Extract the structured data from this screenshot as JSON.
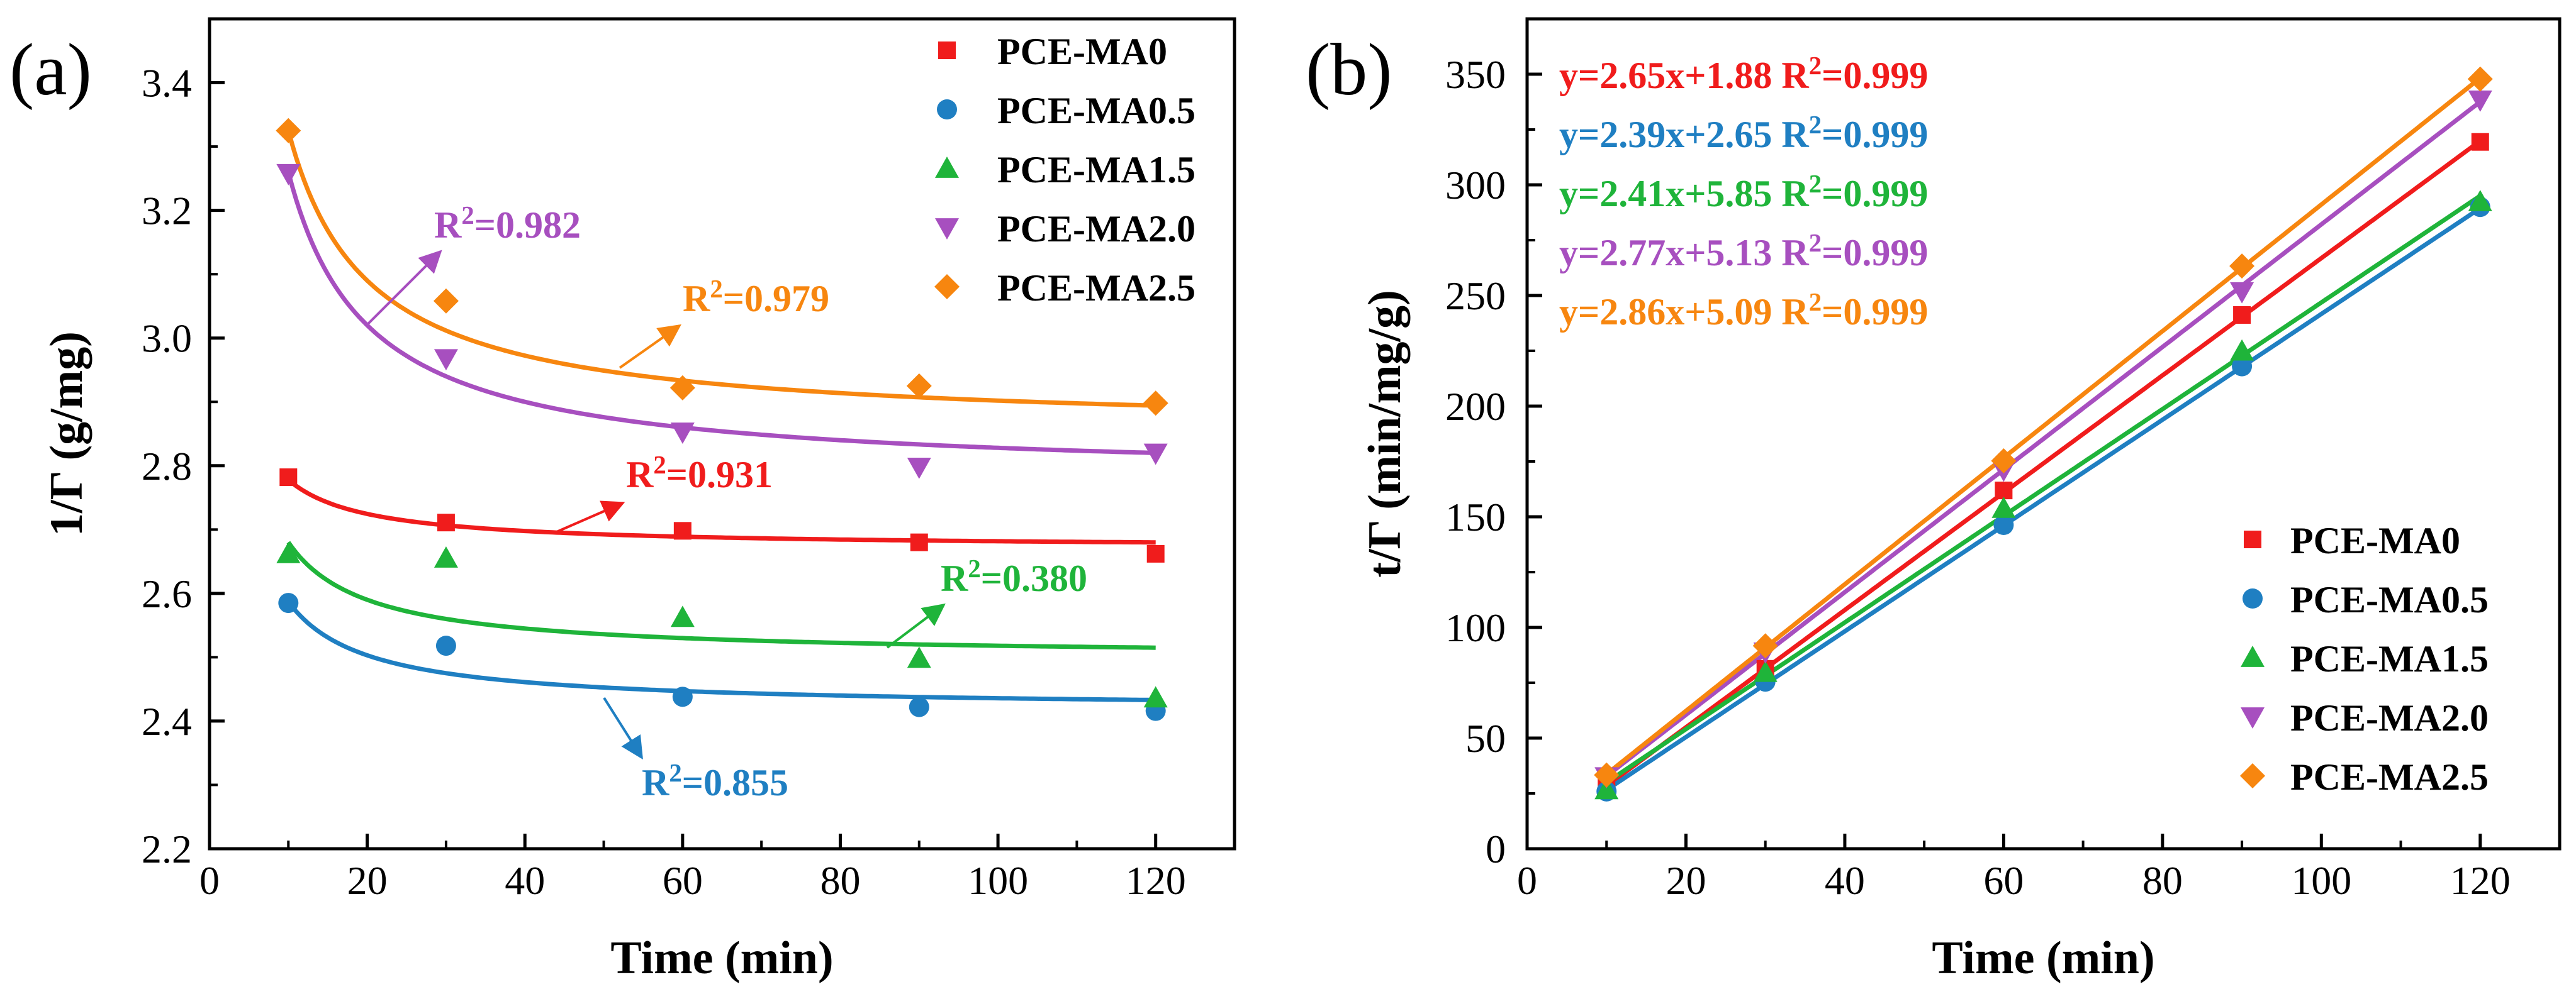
{
  "colors": {
    "PCE-MA0": "#f01c1c",
    "PCE-MA0.5": "#1f7fc2",
    "PCE-MA1.5": "#1fb43a",
    "PCE-MA2.0": "#a74fbf",
    "PCE-MA2.5": "#f7860f"
  },
  "chart_data": [
    {
      "panel_label": "(a)",
      "type": "scatter",
      "title": "",
      "xlabel": "Time (min)",
      "ylabel": "1/Γ (g/mg)",
      "xlim": [
        0,
        130
      ],
      "ylim": [
        2.2,
        3.5
      ],
      "xticks": [
        0,
        20,
        40,
        60,
        80,
        100,
        120
      ],
      "yticks": [
        2.2,
        2.4,
        2.6,
        2.8,
        3.0,
        3.2,
        3.4
      ],
      "ytick_decimals": 1,
      "legend_position": "top-right",
      "series": [
        {
          "name": "PCE-MA0",
          "marker": "square",
          "x": [
            10,
            30,
            60,
            90,
            120
          ],
          "y": [
            2.782,
            2.711,
            2.698,
            2.68,
            2.662
          ],
          "fit": {
            "a": 2.671,
            "b": 1.07
          }
        },
        {
          "name": "PCE-MA0.5",
          "marker": "circle",
          "x": [
            10,
            30,
            60,
            90,
            120
          ],
          "y": [
            2.585,
            2.518,
            2.438,
            2.422,
            2.416
          ],
          "fit": {
            "a": 2.419,
            "b": 1.68
          }
        },
        {
          "name": "PCE-MA1.5",
          "marker": "triangle-up",
          "x": [
            10,
            30,
            60,
            90,
            120
          ],
          "y": [
            2.662,
            2.655,
            2.562,
            2.498,
            2.436
          ],
          "fit": {
            "a": 2.5,
            "b": 1.8
          }
        },
        {
          "name": "PCE-MA2.0",
          "marker": "triangle-down",
          "x": [
            10,
            30,
            60,
            90,
            120
          ],
          "y": [
            3.258,
            2.968,
            2.853,
            2.798,
            2.82
          ],
          "fit": {
            "a": 2.78,
            "b": 4.8
          }
        },
        {
          "name": "PCE-MA2.5",
          "marker": "diamond",
          "x": [
            10,
            30,
            60,
            90,
            120
          ],
          "y": [
            3.325,
            3.058,
            2.922,
            2.925,
            2.898
          ],
          "fit": {
            "a": 2.855,
            "b": 4.7
          }
        }
      ],
      "annotations": [
        {
          "series": "PCE-MA2.0",
          "text": "R²=0.982"
        },
        {
          "series": "PCE-MA2.5",
          "text": "R²=0.979"
        },
        {
          "series": "PCE-MA0",
          "text": "R²=0.931"
        },
        {
          "series": "PCE-MA1.5",
          "text": "R²=0.380"
        },
        {
          "series": "PCE-MA0.5",
          "text": "R²=0.855"
        }
      ]
    },
    {
      "panel_label": "(b)",
      "type": "scatter",
      "title": "",
      "xlabel": "Time (min)",
      "ylabel": "t/Γ (min/mg/g)",
      "xlim": [
        0,
        130
      ],
      "ylim": [
        0,
        375
      ],
      "xticks": [
        0,
        20,
        40,
        60,
        80,
        100,
        120
      ],
      "yticks": [
        0,
        50,
        100,
        150,
        200,
        250,
        300,
        350
      ],
      "ytick_decimals": 0,
      "legend_position": "bottom-right",
      "series": [
        {
          "name": "PCE-MA0",
          "marker": "square",
          "x": [
            10,
            30,
            60,
            90,
            120
          ],
          "y": [
            27.8,
            81.3,
            161.9,
            241.2,
            319.4
          ],
          "fit": {
            "slope": 2.65,
            "intercept": 1.88
          }
        },
        {
          "name": "PCE-MA0.5",
          "marker": "circle",
          "x": [
            10,
            30,
            60,
            90,
            120
          ],
          "y": [
            25.9,
            75.5,
            146.3,
            218.0,
            290.0
          ],
          "fit": {
            "slope": 2.39,
            "intercept": 2.65
          }
        },
        {
          "name": "PCE-MA1.5",
          "marker": "triangle-up",
          "x": [
            10,
            30,
            60,
            90,
            120
          ],
          "y": [
            26.6,
            79.6,
            153.7,
            224.8,
            292.3
          ],
          "fit": {
            "slope": 2.41,
            "intercept": 5.85
          }
        },
        {
          "name": "PCE-MA2.0",
          "marker": "triangle-down",
          "x": [
            10,
            30,
            60,
            90,
            120
          ],
          "y": [
            32.6,
            89.0,
            171.2,
            251.8,
            338.4
          ],
          "fit": {
            "slope": 2.77,
            "intercept": 5.13
          }
        },
        {
          "name": "PCE-MA2.5",
          "marker": "diamond",
          "x": [
            10,
            30,
            60,
            90,
            120
          ],
          "y": [
            33.3,
            91.7,
            175.3,
            263.3,
            347.8
          ],
          "fit": {
            "slope": 2.86,
            "intercept": 5.09
          }
        }
      ],
      "equations": [
        {
          "series": "PCE-MA0",
          "text": "y=2.65x+1.88 R²=0.999"
        },
        {
          "series": "PCE-MA0.5",
          "text": "y=2.39x+2.65 R²=0.999"
        },
        {
          "series": "PCE-MA1.5",
          "text": "y=2.41x+5.85 R²=0.999"
        },
        {
          "series": "PCE-MA2.0",
          "text": "y=2.77x+5.13 R²=0.999"
        },
        {
          "series": "PCE-MA2.5",
          "text": "y=2.86x+5.09 R²=0.999"
        }
      ]
    }
  ]
}
